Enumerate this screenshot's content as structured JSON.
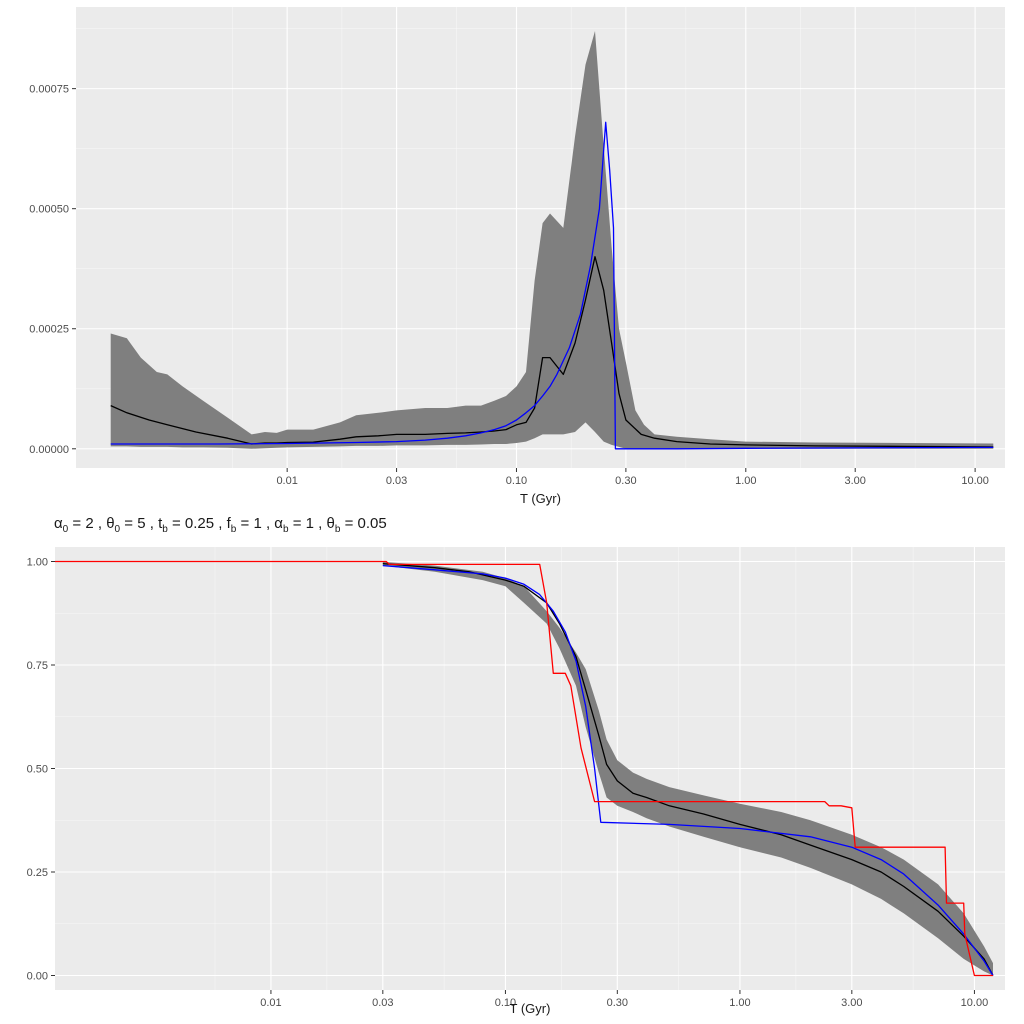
{
  "chart_data": [
    {
      "type": "line",
      "title": "",
      "xlabel": "T (Gyr)",
      "ylabel": "",
      "x_scale": "log",
      "xlim": [
        0.0012,
        13.5
      ],
      "ylim": [
        -4e-05,
        0.00092
      ],
      "x_ticks": [
        0.01,
        0.03,
        0.1,
        0.3,
        1.0,
        3.0,
        10.0
      ],
      "x_tick_labels": [
        "0.01",
        "0.03",
        "0.10",
        "0.30",
        "1.00",
        "3.00",
        "10.00"
      ],
      "y_ticks": [
        0,
        0.00025,
        0.0005,
        0.00075
      ],
      "y_tick_labels": [
        "0.00000",
        "0.00025",
        "0.00050",
        "0.00075"
      ],
      "grid": true,
      "band": {
        "color": "#7f7f7f",
        "x": [
          0.0017,
          0.002,
          0.0023,
          0.0027,
          0.003,
          0.0035,
          0.0043,
          0.0055,
          0.007,
          0.008,
          0.009,
          0.01,
          0.013,
          0.017,
          0.02,
          0.025,
          0.03,
          0.04,
          0.05,
          0.06,
          0.07,
          0.08,
          0.09,
          0.1,
          0.11,
          0.12,
          0.13,
          0.14,
          0.16,
          0.18,
          0.2,
          0.22,
          0.24,
          0.26,
          0.28,
          0.3,
          0.33,
          0.36,
          0.4,
          0.5,
          0.7,
          1.0,
          2.0,
          5.0,
          12.0
        ],
        "upper": [
          0.00024,
          0.00023,
          0.00019,
          0.00016,
          0.000155,
          0.00013,
          0.0001,
          6.5e-05,
          3e-05,
          3.5e-05,
          3.3e-05,
          4e-05,
          4e-05,
          5.5e-05,
          7e-05,
          7.5e-05,
          8e-05,
          8.5e-05,
          8.5e-05,
          9e-05,
          9e-05,
          0.0001,
          0.00011,
          0.00013,
          0.00016,
          0.00035,
          0.00047,
          0.00049,
          0.00046,
          0.00065,
          0.0008,
          0.00087,
          0.00063,
          0.00042,
          0.00025,
          0.00018,
          8e-05,
          5e-05,
          3e-05,
          2.5e-05,
          2e-05,
          1.5e-05,
          1.3e-05,
          1.2e-05,
          1.1e-05
        ],
        "lower": [
          5e-06,
          5e-06,
          4e-06,
          4e-06,
          4e-06,
          3e-06,
          3e-06,
          2e-06,
          0.0,
          1e-06,
          2e-06,
          3e-06,
          4e-06,
          5e-06,
          6e-06,
          6e-06,
          7e-06,
          7e-06,
          8e-06,
          8e-06,
          9e-06,
          1e-05,
          1e-05,
          1.2e-05,
          1.5e-05,
          2.2e-05,
          3e-05,
          3e-05,
          3e-05,
          3.5e-05,
          5.5e-05,
          3.5e-05,
          1.5e-05,
          8e-06,
          4e-06,
          0.0,
          0.0,
          0.0,
          0.0,
          0.0,
          0.0,
          0.0,
          0.0,
          0.0,
          0.0
        ]
      },
      "series": [
        {
          "color": "#000000",
          "x": [
            0.0017,
            0.002,
            0.0025,
            0.003,
            0.004,
            0.0055,
            0.007,
            0.008,
            0.009,
            0.01,
            0.013,
            0.017,
            0.02,
            0.025,
            0.03,
            0.04,
            0.05,
            0.06,
            0.07,
            0.08,
            0.09,
            0.1,
            0.11,
            0.12,
            0.13,
            0.14,
            0.16,
            0.18,
            0.2,
            0.22,
            0.24,
            0.26,
            0.28,
            0.3,
            0.35,
            0.4,
            0.5,
            0.7,
            1.0,
            2.0,
            5.0,
            12.0
          ],
          "y": [
            9e-05,
            7.5e-05,
            6e-05,
            5e-05,
            3.5e-05,
            2.2e-05,
            1e-05,
            1.2e-05,
            1.2e-05,
            1.3e-05,
            1.4e-05,
            2e-05,
            2.5e-05,
            2.7e-05,
            3e-05,
            3e-05,
            3.2e-05,
            3.3e-05,
            3.5e-05,
            3.7e-05,
            4e-05,
            5e-05,
            5.5e-05,
            8.5e-05,
            0.00019,
            0.00019,
            0.000155,
            0.00022,
            0.00031,
            0.0004,
            0.00033,
            0.00022,
            0.000115,
            6e-05,
            3e-05,
            2.2e-05,
            1.5e-05,
            1e-05,
            8e-06,
            6e-06,
            5e-06,
            4e-06
          ]
        },
        {
          "color": "#0000ff",
          "x": [
            0.0017,
            0.005,
            0.01,
            0.02,
            0.03,
            0.04,
            0.05,
            0.06,
            0.07,
            0.08,
            0.09,
            0.1,
            0.11,
            0.12,
            0.13,
            0.14,
            0.15,
            0.17,
            0.19,
            0.21,
            0.23,
            0.245,
            0.255,
            0.265,
            0.27,
            0.3,
            0.5,
            1.0,
            12.0
          ],
          "y": [
            1e-05,
            1e-05,
            1.1e-05,
            1.3e-05,
            1.5e-05,
            1.8e-05,
            2.2e-05,
            2.7e-05,
            3.3e-05,
            4e-05,
            4.8e-05,
            6e-05,
            7.5e-05,
            9e-05,
            0.00011,
            0.00013,
            0.000155,
            0.00021,
            0.00028,
            0.00038,
            0.0005,
            0.00068,
            0.00058,
            0.00046,
            0.0,
            0.0,
            0.0,
            1e-06,
            3e-06
          ]
        }
      ]
    },
    {
      "type": "line",
      "title": "",
      "subtitle": {
        "alpha0": "2",
        "theta0": "5",
        "tb": "0.25",
        "fb": "1",
        "alphab": "1",
        "thetab": "0.05"
      },
      "xlabel": "T (Gyr)",
      "ylabel": "",
      "x_scale": "log",
      "xlim": [
        0.0012,
        13.5
      ],
      "ylim": [
        -0.035,
        1.035
      ],
      "x_ticks": [
        0.01,
        0.03,
        0.1,
        0.3,
        1.0,
        3.0,
        10.0
      ],
      "x_tick_labels": [
        "0.01",
        "0.03",
        "0.10",
        "0.30",
        "1.00",
        "3.00",
        "10.00"
      ],
      "y_ticks": [
        0,
        0.25,
        0.5,
        0.75,
        1.0
      ],
      "y_tick_labels": [
        "0.00",
        "0.25",
        "0.50",
        "0.75",
        "1.00"
      ],
      "grid": true,
      "band": {
        "color": "#7f7f7f",
        "x": [
          0.03,
          0.05,
          0.08,
          0.1,
          0.12,
          0.15,
          0.17,
          0.2,
          0.22,
          0.25,
          0.27,
          0.3,
          0.35,
          0.4,
          0.5,
          0.7,
          1.0,
          1.5,
          2.0,
          3.0,
          4.0,
          5.0,
          7.0,
          9.0,
          11.0,
          12.0
        ],
        "upper": [
          0.999,
          0.99,
          0.975,
          0.96,
          0.94,
          0.88,
          0.84,
          0.78,
          0.74,
          0.64,
          0.57,
          0.52,
          0.49,
          0.475,
          0.455,
          0.435,
          0.415,
          0.395,
          0.375,
          0.34,
          0.31,
          0.28,
          0.22,
          0.15,
          0.07,
          0.03
        ],
        "lower": [
          0.99,
          0.975,
          0.955,
          0.94,
          0.9,
          0.85,
          0.79,
          0.7,
          0.6,
          0.49,
          0.43,
          0.41,
          0.395,
          0.38,
          0.36,
          0.335,
          0.31,
          0.285,
          0.26,
          0.22,
          0.185,
          0.15,
          0.09,
          0.04,
          0.01,
          0.0
        ]
      },
      "series": [
        {
          "color": "#000000",
          "x": [
            0.03,
            0.05,
            0.07,
            0.1,
            0.12,
            0.15,
            0.17,
            0.2,
            0.22,
            0.25,
            0.27,
            0.3,
            0.35,
            0.4,
            0.5,
            0.7,
            1.0,
            1.5,
            2.0,
            3.0,
            4.0,
            5.0,
            7.0,
            9.0,
            11.0,
            12.0
          ],
          "y": [
            0.995,
            0.985,
            0.975,
            0.955,
            0.94,
            0.9,
            0.85,
            0.77,
            0.69,
            0.58,
            0.51,
            0.47,
            0.44,
            0.43,
            0.41,
            0.39,
            0.365,
            0.34,
            0.315,
            0.28,
            0.25,
            0.215,
            0.155,
            0.095,
            0.04,
            0.0
          ]
        },
        {
          "color": "#0000ff",
          "x": [
            0.03,
            0.05,
            0.08,
            0.1,
            0.12,
            0.14,
            0.16,
            0.18,
            0.2,
            0.22,
            0.24,
            0.255,
            0.5,
            1.0,
            2.0,
            3.0,
            4.0,
            5.0,
            7.0,
            9.0,
            11.0,
            12.0
          ],
          "y": [
            0.99,
            0.98,
            0.97,
            0.96,
            0.945,
            0.92,
            0.88,
            0.83,
            0.76,
            0.65,
            0.5,
            0.37,
            0.365,
            0.355,
            0.335,
            0.31,
            0.28,
            0.245,
            0.17,
            0.1,
            0.035,
            0.0
          ]
        },
        {
          "color": "#ff0000",
          "x": [
            0.0012,
            0.03,
            0.031,
            0.032,
            0.14,
            0.15,
            0.16,
            0.18,
            0.19,
            0.21,
            0.24,
            2.3,
            2.4,
            2.7,
            3.0,
            3.1,
            7.5,
            7.6,
            9.0,
            9.1,
            10.0,
            12.0
          ],
          "y": [
            1.0,
            1.0,
            1.0,
            0.993,
            0.993,
            0.9,
            0.73,
            0.73,
            0.7,
            0.55,
            0.42,
            0.42,
            0.41,
            0.41,
            0.405,
            0.31,
            0.31,
            0.175,
            0.175,
            0.1,
            0.0,
            0.0
          ]
        }
      ]
    }
  ]
}
